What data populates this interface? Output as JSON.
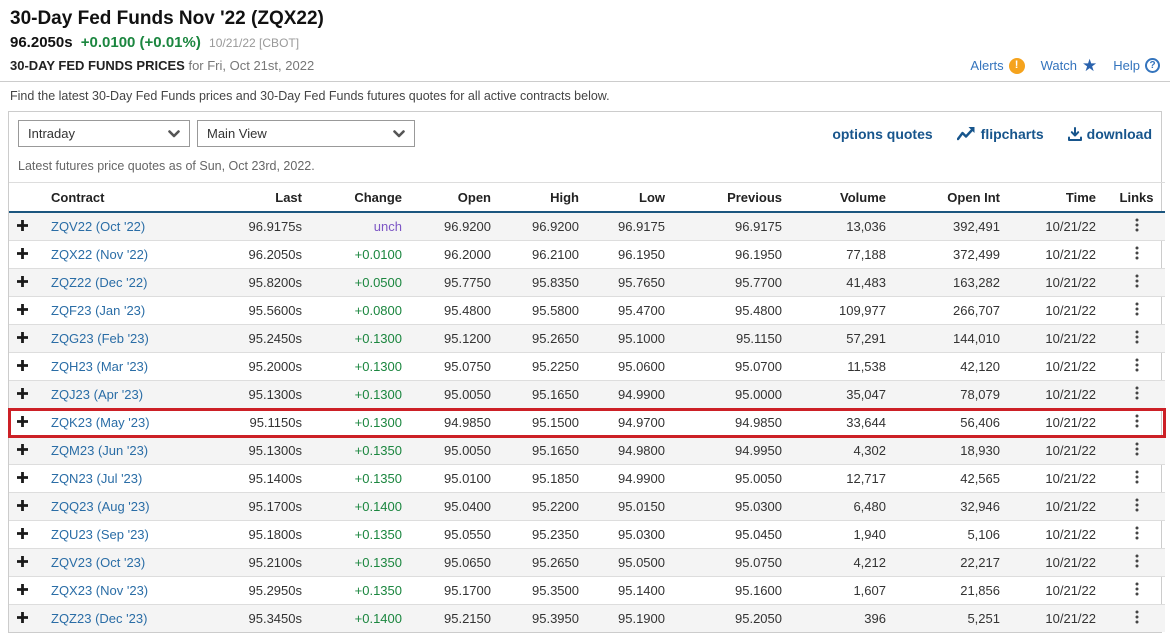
{
  "header": {
    "title": "30-Day Fed Funds Nov '22 (ZQX22)",
    "last_price": "96.2050s",
    "change": "+0.0100 (+0.01%)",
    "date_exchange": "10/21/22 [CBOT]",
    "prices_label": "30-DAY FED FUNDS PRICES",
    "prices_for": "for Fri, Oct 21st, 2022",
    "alerts_label": "Alerts",
    "watch_label": "Watch",
    "help_label": "Help"
  },
  "icons": {
    "alerts": "exclamation-circle !",
    "watch": "star ★",
    "help": "question-circle ?",
    "select_chevron": "chevron-down",
    "flipcharts": "zigzag-chart-arrow",
    "download": "download-arrow-tray",
    "expand_row": "heavy-plus +",
    "row_links": "vertical-ellipsis ⋮"
  },
  "description": "Find the latest 30-Day Fed Funds prices and 30-Day Fed Funds futures quotes for all active contracts below.",
  "toolbar": {
    "frequency_select_value": "Intraday",
    "view_select_value": "Main View",
    "options_quotes_label": "options quotes",
    "flipcharts_label": "flipcharts",
    "download_label": "download"
  },
  "quotes_note": "Latest futures price quotes as of Sun, Oct 23rd, 2022.",
  "table": {
    "columns": [
      "Contract",
      "Last",
      "Change",
      "Open",
      "High",
      "Low",
      "Previous",
      "Volume",
      "Open Int",
      "Time",
      "Links"
    ],
    "rows": [
      {
        "contract": "ZQV22 (Oct '22)",
        "last": "96.9175s",
        "change": "unch",
        "open": "96.9200",
        "high": "96.9200",
        "low": "96.9175",
        "previous": "96.9175",
        "volume": "13,036",
        "open_int": "392,491",
        "time": "10/21/22"
      },
      {
        "contract": "ZQX22 (Nov '22)",
        "last": "96.2050s",
        "change": "+0.0100",
        "open": "96.2000",
        "high": "96.2100",
        "low": "96.1950",
        "previous": "96.1950",
        "volume": "77,188",
        "open_int": "372,499",
        "time": "10/21/22"
      },
      {
        "contract": "ZQZ22 (Dec '22)",
        "last": "95.8200s",
        "change": "+0.0500",
        "open": "95.7750",
        "high": "95.8350",
        "low": "95.7650",
        "previous": "95.7700",
        "volume": "41,483",
        "open_int": "163,282",
        "time": "10/21/22"
      },
      {
        "contract": "ZQF23 (Jan '23)",
        "last": "95.5600s",
        "change": "+0.0800",
        "open": "95.4800",
        "high": "95.5800",
        "low": "95.4700",
        "previous": "95.4800",
        "volume": "109,977",
        "open_int": "266,707",
        "time": "10/21/22"
      },
      {
        "contract": "ZQG23 (Feb '23)",
        "last": "95.2450s",
        "change": "+0.1300",
        "open": "95.1200",
        "high": "95.2650",
        "low": "95.1000",
        "previous": "95.1150",
        "volume": "57,291",
        "open_int": "144,010",
        "time": "10/21/22"
      },
      {
        "contract": "ZQH23 (Mar '23)",
        "last": "95.2000s",
        "change": "+0.1300",
        "open": "95.0750",
        "high": "95.2250",
        "low": "95.0600",
        "previous": "95.0700",
        "volume": "11,538",
        "open_int": "42,120",
        "time": "10/21/22"
      },
      {
        "contract": "ZQJ23 (Apr '23)",
        "last": "95.1300s",
        "change": "+0.1300",
        "open": "95.0050",
        "high": "95.1650",
        "low": "94.9900",
        "previous": "95.0000",
        "volume": "35,047",
        "open_int": "78,079",
        "time": "10/21/22"
      },
      {
        "contract": "ZQK23 (May '23)",
        "last": "95.1150s",
        "change": "+0.1300",
        "open": "94.9850",
        "high": "95.1500",
        "low": "94.9700",
        "previous": "94.9850",
        "volume": "33,644",
        "open_int": "56,406",
        "time": "10/21/22",
        "highlighted": true
      },
      {
        "contract": "ZQM23 (Jun '23)",
        "last": "95.1300s",
        "change": "+0.1350",
        "open": "95.0050",
        "high": "95.1650",
        "low": "94.9800",
        "previous": "94.9950",
        "volume": "4,302",
        "open_int": "18,930",
        "time": "10/21/22"
      },
      {
        "contract": "ZQN23 (Jul '23)",
        "last": "95.1400s",
        "change": "+0.1350",
        "open": "95.0100",
        "high": "95.1850",
        "low": "94.9900",
        "previous": "95.0050",
        "volume": "12,717",
        "open_int": "42,565",
        "time": "10/21/22"
      },
      {
        "contract": "ZQQ23 (Aug '23)",
        "last": "95.1700s",
        "change": "+0.1400",
        "open": "95.0400",
        "high": "95.2200",
        "low": "95.0150",
        "previous": "95.0300",
        "volume": "6,480",
        "open_int": "32,946",
        "time": "10/21/22"
      },
      {
        "contract": "ZQU23 (Sep '23)",
        "last": "95.1800s",
        "change": "+0.1350",
        "open": "95.0550",
        "high": "95.2350",
        "low": "95.0300",
        "previous": "95.0450",
        "volume": "1,940",
        "open_int": "5,106",
        "time": "10/21/22"
      },
      {
        "contract": "ZQV23 (Oct '23)",
        "last": "95.2100s",
        "change": "+0.1350",
        "open": "95.0650",
        "high": "95.2650",
        "low": "95.0500",
        "previous": "95.0750",
        "volume": "4,212",
        "open_int": "22,217",
        "time": "10/21/22"
      },
      {
        "contract": "ZQX23 (Nov '23)",
        "last": "95.2950s",
        "change": "+0.1350",
        "open": "95.1700",
        "high": "95.3500",
        "low": "95.1400",
        "previous": "95.1600",
        "volume": "1,607",
        "open_int": "21,856",
        "time": "10/21/22"
      },
      {
        "contract": "ZQZ23 (Dec '23)",
        "last": "95.3450s",
        "change": "+0.1400",
        "open": "95.2150",
        "high": "95.3950",
        "low": "95.1900",
        "previous": "95.2050",
        "volume": "396",
        "open_int": "5,251",
        "time": "10/21/22"
      }
    ]
  },
  "colors": {
    "green": "#1b863f",
    "purple": "#7d56c5",
    "link": "#2a6da6",
    "toollink": "#17558c",
    "red": "#cc2026",
    "navy": "#1b567f",
    "orange": "#f5a31d",
    "starblue": "#2a62ad",
    "helpblue": "#3474bd"
  }
}
